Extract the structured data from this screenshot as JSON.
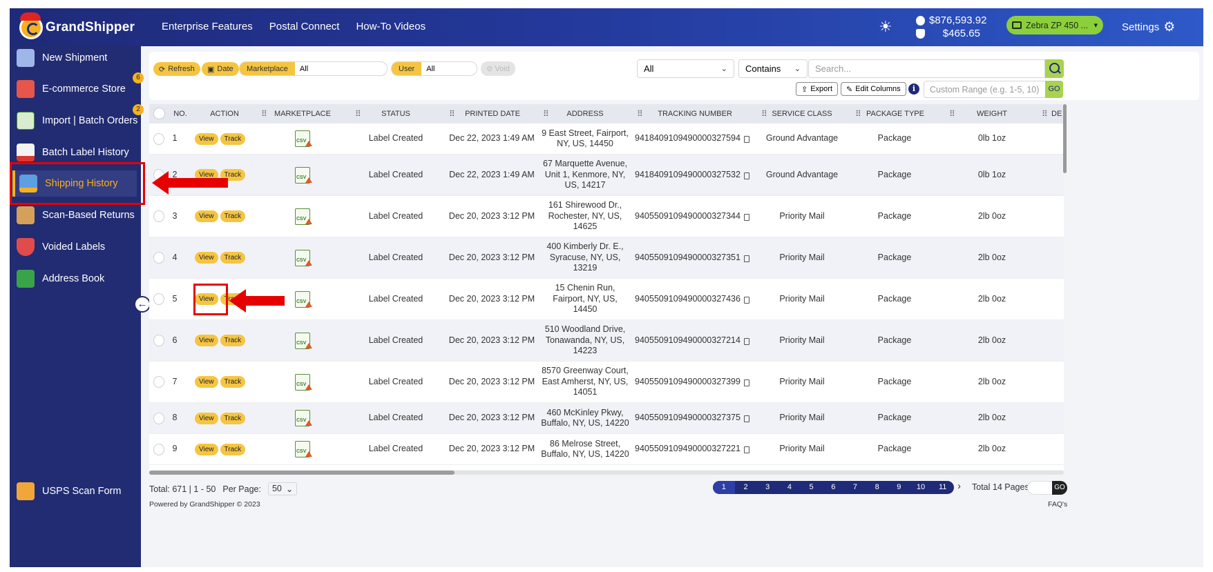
{
  "header": {
    "logo_text": "GrandShipper",
    "nav": [
      "Enterprise Features",
      "Postal Connect",
      "How-To Videos"
    ],
    "balance_main": "$876,593.92",
    "balance_secondary": "$465.65",
    "printer": "Zebra ZP 450 ...",
    "settings_label": "Settings"
  },
  "sidebar": {
    "items": [
      {
        "label": "New Shipment",
        "badge": null,
        "icon": "keyboard-icon"
      },
      {
        "label": "E-commerce Store",
        "badge": "6",
        "icon": "store-icon"
      },
      {
        "label": "Import | Batch Orders",
        "badge": "2",
        "icon": "csv-icon"
      },
      {
        "label": "Batch Label History",
        "badge": null,
        "icon": "pdf-icon"
      },
      {
        "label": "Shipping History",
        "badge": null,
        "icon": "truck-icon"
      },
      {
        "label": "Scan-Based Returns",
        "badge": null,
        "icon": "box-icon"
      },
      {
        "label": "Voided Labels",
        "badge": null,
        "icon": "shield-icon"
      },
      {
        "label": "Address Book",
        "badge": null,
        "icon": "book-icon"
      }
    ],
    "bottom_item": "USPS Scan Form"
  },
  "toolbar": {
    "refresh": "Refresh",
    "date": "Date",
    "marketplace_label": "Marketplace",
    "marketplace_value": "All",
    "user_label": "User",
    "user_value": "All",
    "void": "Void",
    "filter_field": "All",
    "filter_op": "Contains",
    "search_placeholder": "Search...",
    "export": "Export",
    "edit_columns": "Edit Columns",
    "range_placeholder": "Custom Range (e.g. 1-5, 10)",
    "go": "GO"
  },
  "table": {
    "columns": [
      "NO.",
      "ACTION",
      "MARKETPLACE",
      "STATUS",
      "PRINTED DATE",
      "ADDRESS",
      "TRACKING NUMBER",
      "SERVICE CLASS",
      "PACKAGE TYPE",
      "WEIGHT",
      "DE"
    ],
    "view_label": "View",
    "track_label": "Track",
    "csv_label": "CSV",
    "rows": [
      {
        "no": "1",
        "status": "Label Created",
        "date": "Dec 22, 2023 1:49 AM",
        "address": [
          "9 East Street, Fairport,",
          "NY, US, 14450"
        ],
        "tracking": "9418409109490000327594",
        "service": "Ground Advantage",
        "package": "Package",
        "weight": "0lb 1oz"
      },
      {
        "no": "2",
        "status": "Label Created",
        "date": "Dec 22, 2023 1:49 AM",
        "address": [
          "67 Marquette Avenue,",
          "Unit 1, Kenmore, NY,",
          "US, 14217"
        ],
        "tracking": "9418409109490000327532",
        "service": "Ground Advantage",
        "package": "Package",
        "weight": "0lb 1oz"
      },
      {
        "no": "3",
        "status": "Label Created",
        "date": "Dec 20, 2023 3:12 PM",
        "address": [
          "161 Shirewood Dr.,",
          "Rochester, NY, US,",
          "14625"
        ],
        "tracking": "9405509109490000327344",
        "service": "Priority Mail",
        "package": "Package",
        "weight": "2lb 0oz"
      },
      {
        "no": "4",
        "status": "Label Created",
        "date": "Dec 20, 2023 3:12 PM",
        "address": [
          "400 Kimberly Dr. E.,",
          "Syracuse, NY, US,",
          "13219"
        ],
        "tracking": "9405509109490000327351",
        "service": "Priority Mail",
        "package": "Package",
        "weight": "2lb 0oz"
      },
      {
        "no": "5",
        "status": "Label Created",
        "date": "Dec 20, 2023 3:12 PM",
        "address": [
          "15 Chenin Run,",
          "Fairport, NY, US,",
          "14450"
        ],
        "tracking": "9405509109490000327436",
        "service": "Priority Mail",
        "package": "Package",
        "weight": "2lb 0oz"
      },
      {
        "no": "6",
        "status": "Label Created",
        "date": "Dec 20, 2023 3:12 PM",
        "address": [
          "510 Woodland Drive,",
          "Tonawanda, NY, US,",
          "14223"
        ],
        "tracking": "9405509109490000327214",
        "service": "Priority Mail",
        "package": "Package",
        "weight": "2lb 0oz"
      },
      {
        "no": "7",
        "status": "Label Created",
        "date": "Dec 20, 2023 3:12 PM",
        "address": [
          "8570 Greenway Court,",
          "East Amherst, NY, US,",
          "14051"
        ],
        "tracking": "9405509109490000327399",
        "service": "Priority Mail",
        "package": "Package",
        "weight": "2lb 0oz"
      },
      {
        "no": "8",
        "status": "Label Created",
        "date": "Dec 20, 2023 3:12 PM",
        "address": [
          "460 McKinley Pkwy,",
          "Buffalo, NY, US, 14220"
        ],
        "tracking": "9405509109490000327375",
        "service": "Priority Mail",
        "package": "Package",
        "weight": "2lb 0oz"
      },
      {
        "no": "9",
        "status": "Label Created",
        "date": "Dec 20, 2023 3:12 PM",
        "address": [
          "86 Melrose Street,",
          "Buffalo, NY, US, 14220"
        ],
        "tracking": "9405509109490000327221",
        "service": "Priority Mail",
        "package": "Package",
        "weight": "2lb 0oz"
      }
    ]
  },
  "footer": {
    "total": "Total: 671 | 1 - 50",
    "per_page_label": "Per Page:",
    "per_page_value": "50",
    "pages": [
      "1",
      "2",
      "3",
      "4",
      "5",
      "6",
      "7",
      "8",
      "9",
      "10",
      "11"
    ],
    "total_pages": "Total 14 Pages",
    "go": "GO",
    "powered": "Powered by GrandShipper © 2023",
    "faq": "FAQ's"
  },
  "colors": {
    "accent": "#f5c542",
    "nav": "#222c72",
    "annotation": "#e60000"
  }
}
